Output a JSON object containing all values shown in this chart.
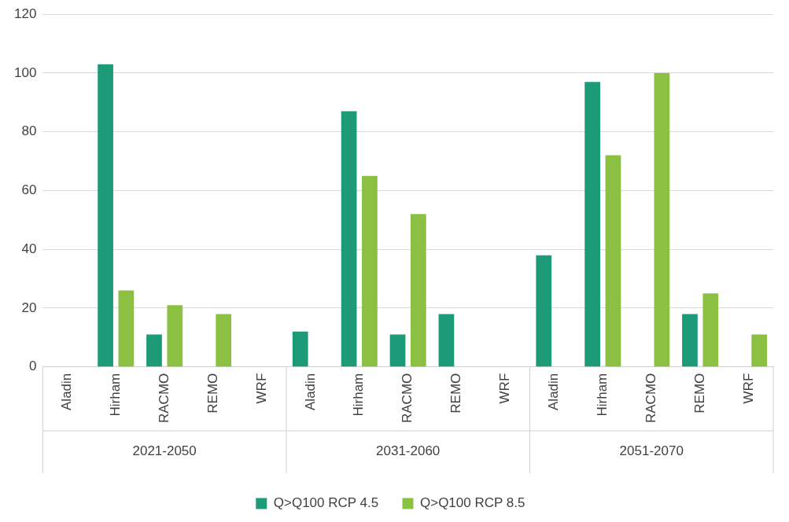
{
  "chart_data": {
    "type": "bar",
    "categories": [
      "Aladin",
      "Hirham",
      "RACMO",
      "REMO",
      "WRF",
      "Aladin",
      "Hirham",
      "RACMO",
      "REMO",
      "WRF",
      "Aladin",
      "Hirham",
      "RACMO",
      "REMO",
      "WRF"
    ],
    "annotations": [
      "2021-2050",
      "2031-2060",
      "2051-2070"
    ],
    "series": [
      {
        "name": "Q>Q100 RCP 4.5",
        "color": "#1d9a78",
        "values": [
          null,
          103,
          11,
          null,
          null,
          12,
          87,
          11,
          18,
          null,
          38,
          97,
          null,
          18,
          null
        ]
      },
      {
        "name": "Q>Q100 RCP 8.5",
        "color": "#8cc043",
        "values": [
          null,
          26,
          21,
          18,
          null,
          null,
          65,
          52,
          null,
          null,
          null,
          72,
          100,
          25,
          11
        ]
      }
    ],
    "ylim": [
      0,
      120
    ],
    "yticks": [
      0,
      20,
      40,
      60,
      80,
      100,
      120
    ],
    "grid": "y",
    "legend": "bottom"
  }
}
